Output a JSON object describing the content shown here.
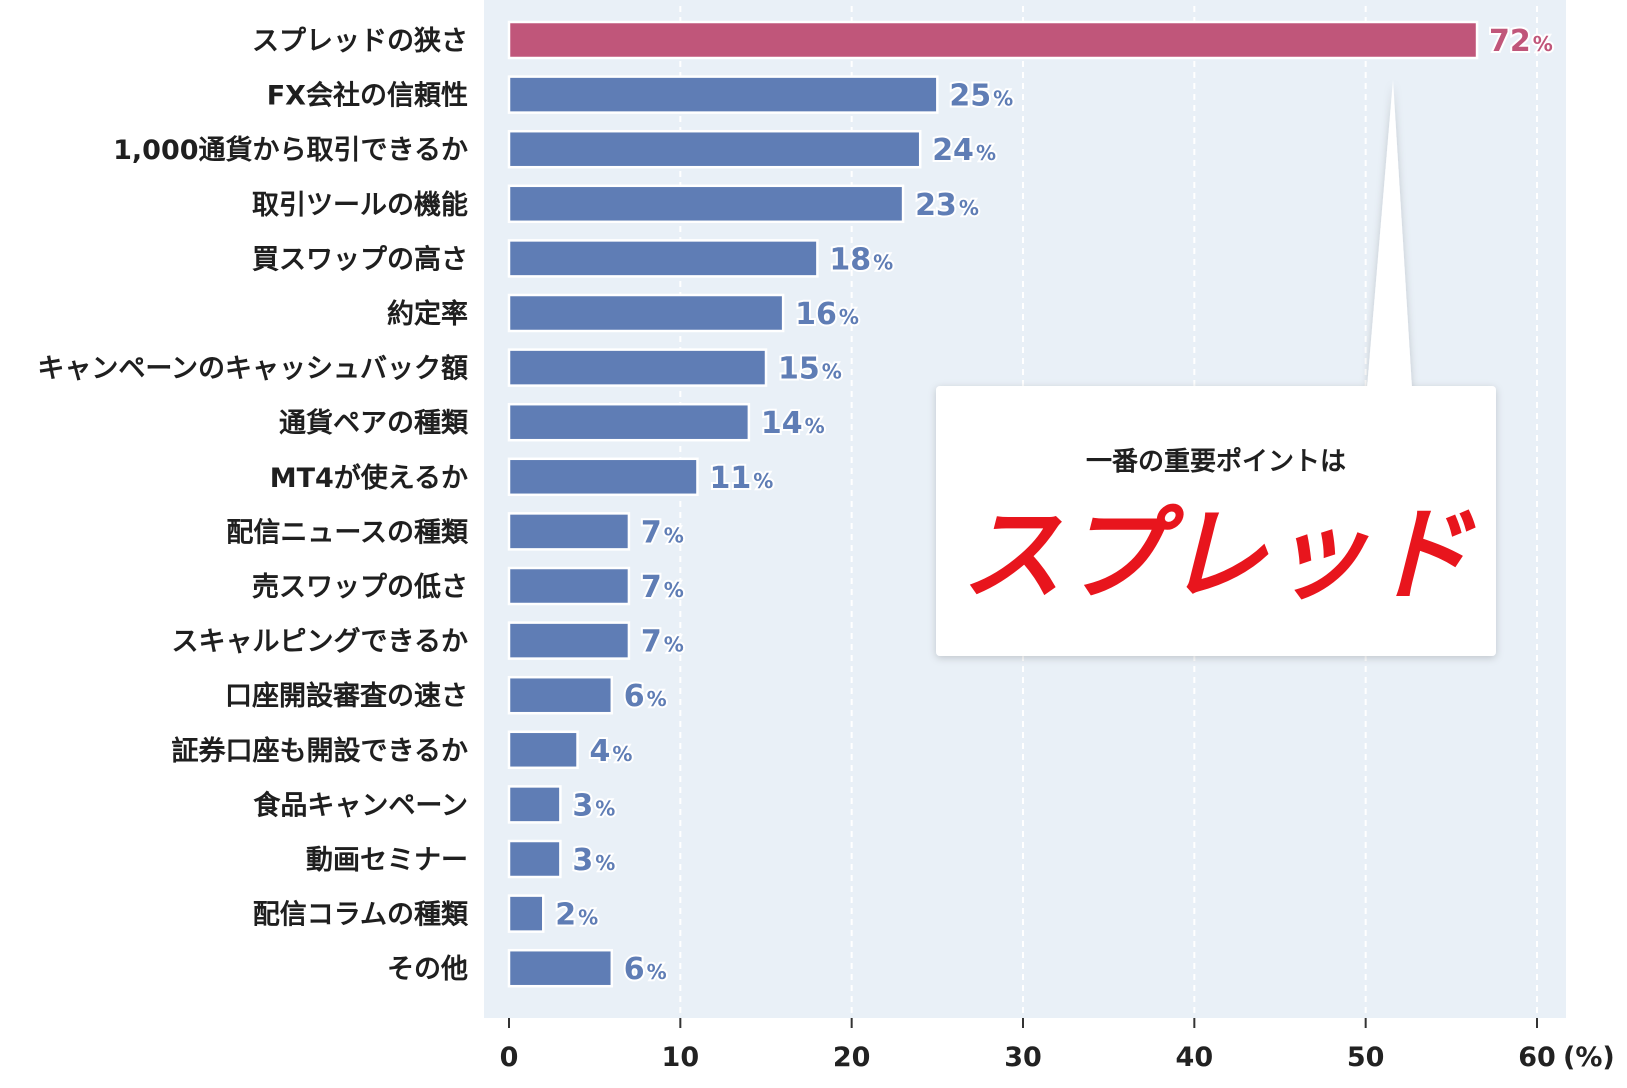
{
  "chart_data": {
    "type": "bar",
    "orientation": "horizontal",
    "categories": [
      "スプレッドの狭さ",
      "FX会社の信頼性",
      "1,000通貨から取引できるか",
      "取引ツールの機能",
      "買スワップの高さ",
      "約定率",
      "キャンペーンのキャッシュバック額",
      "通貨ペアの種類",
      "MT4が使えるか",
      "配信ニュースの種類",
      "売スワップの低さ",
      "スキャルピングできるか",
      "口座開設審査の速さ",
      "証券口座も開設できるか",
      "食品キャンペーン",
      "動画セミナー",
      "配信コラムの種類",
      "その他"
    ],
    "values": [
      72,
      25,
      24,
      23,
      18,
      16,
      15,
      14,
      11,
      7,
      7,
      7,
      6,
      4,
      3,
      3,
      2,
      6
    ],
    "value_labels": [
      "72",
      "25",
      "24",
      "23",
      "18",
      "16",
      "15",
      "14",
      "11",
      "7",
      "7",
      "7",
      "6",
      "4",
      "3",
      "3",
      "2",
      "6"
    ],
    "value_suffix": "%",
    "xlim": [
      0,
      60
    ],
    "xticks": [
      "0",
      "10",
      "20",
      "30",
      "40",
      "50",
      "60"
    ],
    "xunit": "(%)",
    "grid": true,
    "highlight_index": 0,
    "colors": {
      "bar": "#5f7db5",
      "highlight": "#c0567a",
      "plot_bg": "#e9f0f7",
      "value_text": "#5f7db5",
      "highlight_text": "#c0567a"
    }
  },
  "callout": {
    "subtitle": "一番の重要ポイントは",
    "headline": "スプレッド",
    "headline_color": "#e8151d"
  }
}
